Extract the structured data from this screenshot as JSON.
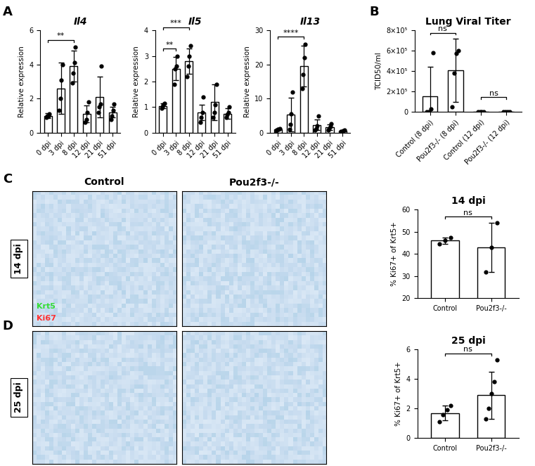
{
  "panel_labels": [
    "A",
    "B",
    "C",
    "D"
  ],
  "images": {
    "columns": [
      "Control",
      "Pou2f3-/-"
    ],
    "rows": [
      "14 dpi",
      "25 dpi"
    ],
    "stain_labels": [
      {
        "text": "Krt5",
        "color": "#33dd33"
      },
      {
        "text": "Ki67",
        "color": "#ff3030"
      }
    ]
  },
  "chart_data": [
    {
      "type": "bar",
      "title": "Il4",
      "ylabel": "Relative expression",
      "categories": [
        "0 dpi",
        "3 dpi",
        "8 dpi",
        "12 dpi",
        "21 dpi",
        "51 dpi"
      ],
      "values": [
        1.0,
        2.6,
        3.9,
        1.1,
        2.1,
        1.2
      ],
      "errors": [
        0.15,
        1.5,
        0.9,
        0.5,
        1.2,
        0.3
      ],
      "points": [
        [
          0.9,
          1.0,
          1.0,
          1.1
        ],
        [
          1.3,
          2.0,
          3.1,
          4.0
        ],
        [
          2.9,
          3.5,
          4.1,
          5.0
        ],
        [
          0.6,
          0.8,
          1.2,
          1.8
        ],
        [
          1.2,
          1.5,
          1.7,
          3.9
        ],
        [
          0.8,
          1.0,
          1.3,
          1.7
        ]
      ],
      "comparisons": [
        {
          "from": "0 dpi",
          "to": "8 dpi",
          "label": "**"
        }
      ],
      "color": "#ffffff",
      "ylim": [
        0,
        6
      ],
      "yticks": [
        0,
        2,
        4,
        6
      ],
      "grid": false
    },
    {
      "type": "bar",
      "title": "Il5",
      "ylabel": "Relative expression",
      "categories": [
        "0 dpi",
        "3 dpi",
        "8 dpi",
        "12 dpi",
        "21 dpi",
        "51 dpi"
      ],
      "values": [
        1.05,
        2.5,
        2.8,
        0.8,
        1.2,
        0.75
      ],
      "errors": [
        0.1,
        0.45,
        0.5,
        0.3,
        0.7,
        0.2
      ],
      "points": [
        [
          0.95,
          1.0,
          1.1,
          1.15
        ],
        [
          1.9,
          2.5,
          2.6,
          3.0
        ],
        [
          2.2,
          2.6,
          3.0,
          3.4
        ],
        [
          0.4,
          0.6,
          0.8,
          1.4
        ],
        [
          0.6,
          0.8,
          1.1,
          1.9
        ],
        [
          0.6,
          0.7,
          0.8,
          1.0
        ]
      ],
      "comparisons": [
        {
          "from": "0 dpi",
          "to": "3 dpi",
          "label": "**"
        },
        {
          "from": "0 dpi",
          "to": "8 dpi",
          "label": "***"
        }
      ],
      "color": "#ffffff",
      "ylim": [
        0,
        4
      ],
      "yticks": [
        0,
        1,
        2,
        3,
        4
      ],
      "grid": false
    },
    {
      "type": "bar",
      "title": "Il13",
      "ylabel": "Relative expression",
      "categories": [
        "0 dpi",
        "3 dpi",
        "8 dpi",
        "12 dpi",
        "21 dpi",
        "51 dpi"
      ],
      "values": [
        1.0,
        5.3,
        19.5,
        2.3,
        1.6,
        0.6
      ],
      "errors": [
        0.2,
        5.0,
        6.0,
        1.5,
        0.8,
        0.3
      ],
      "points": [
        [
          0.7,
          1.0,
          1.1,
          1.2
        ],
        [
          1.0,
          2.5,
          5.5,
          12.0
        ],
        [
          13,
          17,
          22,
          26
        ],
        [
          0.8,
          1.2,
          2.0,
          5.0
        ],
        [
          0.8,
          1.2,
          1.8,
          2.6
        ],
        [
          0.3,
          0.5,
          0.7,
          0.9
        ]
      ],
      "comparisons": [
        {
          "from": "0 dpi",
          "to": "8 dpi",
          "label": "****"
        }
      ],
      "color": "#ffffff",
      "ylim": [
        0,
        30
      ],
      "yticks": [
        0,
        10,
        20,
        30
      ],
      "grid": false
    },
    {
      "type": "bar",
      "title": "Lung Viral Titer",
      "ylabel": "TCID50/ml",
      "categories": [
        "Control (8 dpi)",
        "Pou2f3-/- (8 dpi)",
        "Control (12 dpi)",
        "Pou2f3-/- (12 dpi)"
      ],
      "values": [
        150000,
        410000,
        0,
        0
      ],
      "errors": [
        290000,
        310000,
        0,
        0
      ],
      "points": [
        [
          0,
          0,
          30000,
          580000
        ],
        [
          50000,
          380000,
          570000,
          600000
        ],
        [
          0,
          0,
          0,
          0
        ],
        [
          0,
          0,
          0,
          0
        ]
      ],
      "comparisons": [
        {
          "from": "Control (8 dpi)",
          "to": "Pou2f3-/- (8 dpi)",
          "label": "ns"
        },
        {
          "from": "Control (12 dpi)",
          "to": "Pou2f3-/- (12 dpi)",
          "label": "ns"
        }
      ],
      "color": "#ffffff",
      "ylim": [
        0,
        800000
      ],
      "yticks": [
        0,
        {
          "value": 200000,
          "label": "2×10⁵"
        },
        {
          "value": 400000,
          "label": "4×10⁵"
        },
        {
          "value": 600000,
          "label": "6×10⁵"
        },
        {
          "value": 800000,
          "label": "8×10⁵"
        }
      ],
      "grid": false
    },
    {
      "type": "bar",
      "title": "14 dpi",
      "ylabel": "% Ki67+ of Krt5+",
      "categories": [
        "Control",
        "Pou2f3-/-"
      ],
      "values": [
        46,
        43
      ],
      "errors": [
        1.5,
        11
      ],
      "points": [
        [
          44.5,
          46,
          47.5
        ],
        [
          32,
          43,
          54
        ]
      ],
      "comparisons": [
        {
          "from": "Control",
          "to": "Pou2f3-/-",
          "label": "ns"
        }
      ],
      "color": "#ffffff",
      "ylim": [
        20,
        60
      ],
      "yticks": [
        20,
        30,
        40,
        50,
        60
      ],
      "grid": false
    },
    {
      "type": "bar",
      "title": "25 dpi",
      "ylabel": "% Ki67+ of Krt5+",
      "categories": [
        "Control",
        "Pou2f3-/-"
      ],
      "values": [
        1.7,
        2.9
      ],
      "errors": [
        0.5,
        1.6
      ],
      "points": [
        [
          1.1,
          1.6,
          1.9,
          2.2
        ],
        [
          1.3,
          2.0,
          3.0,
          3.8,
          5.3
        ]
      ],
      "comparisons": [
        {
          "from": "Control",
          "to": "Pou2f3-/-",
          "label": "ns"
        }
      ],
      "color": "#ffffff",
      "ylim": [
        0,
        6
      ],
      "yticks": [
        0,
        2,
        4,
        6
      ],
      "grid": false
    }
  ]
}
